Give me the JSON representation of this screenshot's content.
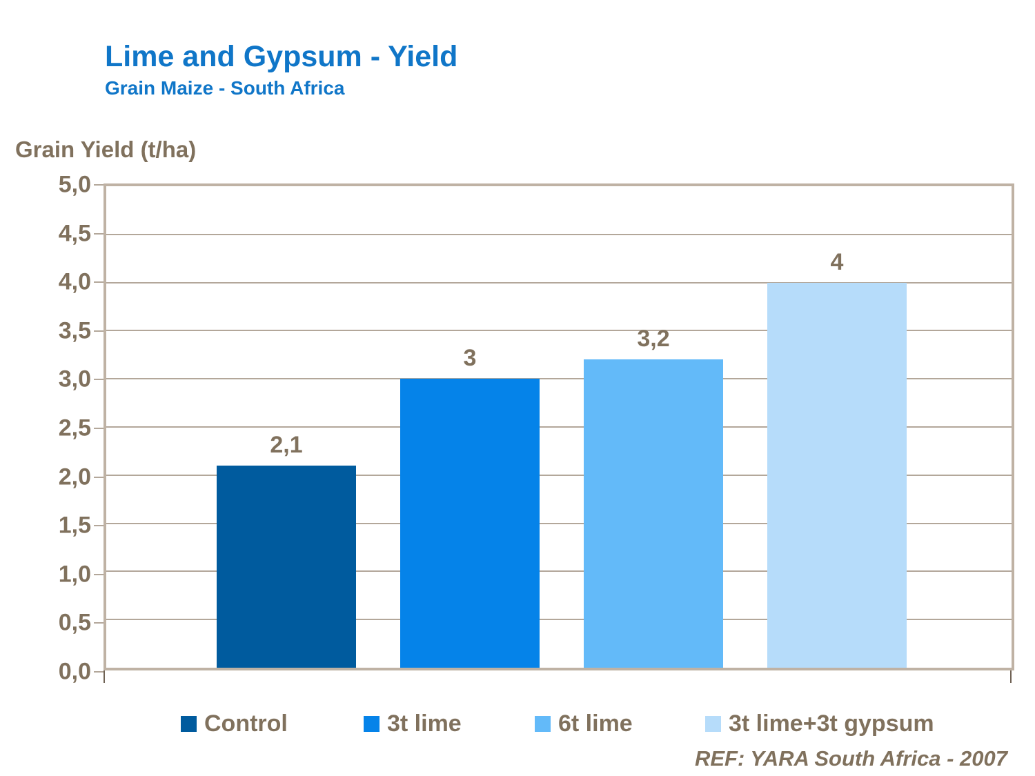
{
  "header": {
    "title": "Lime and Gypsum - Yield",
    "subtitle": "Grain Maize - South Africa"
  },
  "footer": {
    "reference": "REF: YARA South Africa - 2007"
  },
  "chart_data": {
    "type": "bar",
    "title": "Lime and Gypsum - Yield",
    "subtitle": "Grain Maize - South Africa",
    "ylabel": "Grain Yield (t/ha)",
    "xlabel": "",
    "ylim": [
      0,
      5
    ],
    "ytick_step": 0.5,
    "ytick_labels_top_to_bottom": [
      "5,0",
      "4,5",
      "4,0",
      "3,5",
      "3,0",
      "2,5",
      "2,0",
      "1,5",
      "1,0",
      "0,5",
      "0,0"
    ],
    "decimal_separator": ",",
    "grid": "horizontal",
    "legend_position": "bottom",
    "categories": [
      "Control",
      "3t lime",
      "6t lime",
      "3t lime+3t gypsum"
    ],
    "values": [
      2.1,
      3,
      3.2,
      4
    ],
    "value_labels": [
      "2,1",
      "3",
      "3,2",
      "4"
    ],
    "bar_colors": [
      "#005b9e",
      "#0583e9",
      "#63baf9",
      "#b6dcfa"
    ],
    "colors": {
      "title_blue": "#1076c8",
      "text_brown": "#80715d",
      "axis_border": "#bfb2a4",
      "gridline": "#b3a79a",
      "corner_tick": "#6f6254",
      "background": "#ffffff"
    }
  },
  "legend": {
    "items": [
      {
        "label": "Control",
        "color": "#005b9e"
      },
      {
        "label": "3t lime",
        "color": "#0583e9"
      },
      {
        "label": "6t lime",
        "color": "#63baf9"
      },
      {
        "label": "3t lime+3t gypsum",
        "color": "#b6dcfa"
      }
    ]
  }
}
